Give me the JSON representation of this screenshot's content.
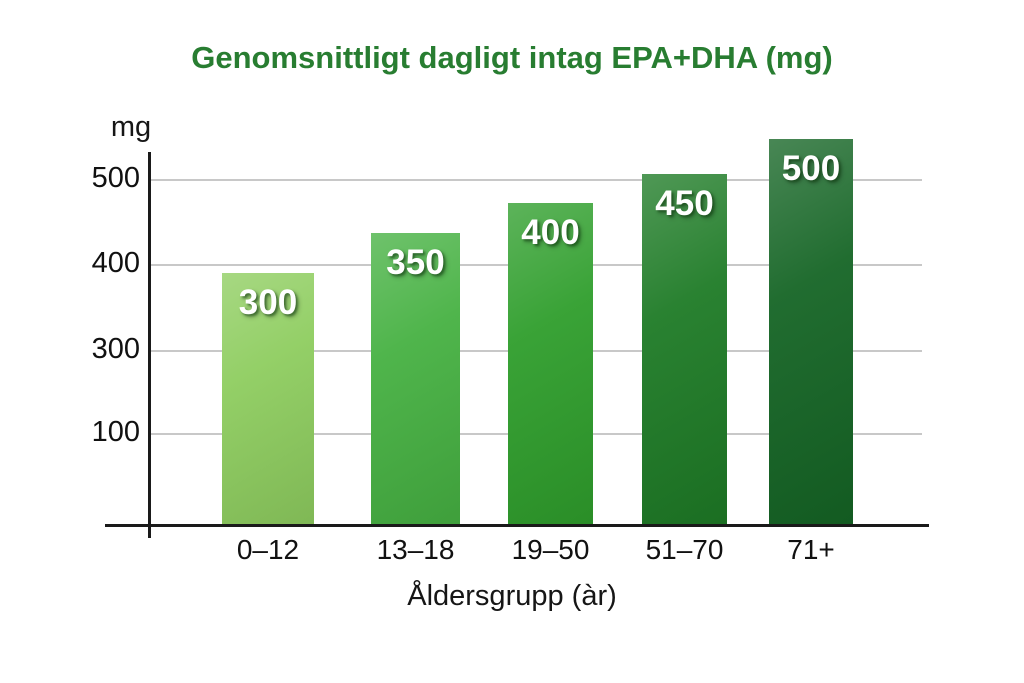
{
  "header": {
    "title": "Genomsnittligt dagligt intag EPA+DHA (mg)",
    "title_color": "#287d31"
  },
  "chart_data": {
    "type": "bar",
    "title": "Genomsnittligt dagligt intag EPA+DHA (mg)",
    "categories": [
      "0–12",
      "13–18",
      "19–50",
      "51–70",
      "71+"
    ],
    "values": [
      300,
      350,
      400,
      450,
      500
    ],
    "bar_labels": [
      "300",
      "350",
      "400",
      "450",
      "500"
    ],
    "bar_colors": [
      "#8ecd5f",
      "#46b142",
      "#2f9e2c",
      "#1e7b26",
      "#156525"
    ],
    "xlabel": "Åldersgrupp (àr)",
    "ylabel": "mg",
    "ytick_labels": [
      "500",
      "400",
      "300",
      "100"
    ],
    "ylim": [
      0,
      560
    ],
    "grid": true,
    "legend": false,
    "axis_color": "#1a1a1a",
    "grid_color": "#c8c8c8",
    "bar_value_text_color": "#ffffff"
  }
}
